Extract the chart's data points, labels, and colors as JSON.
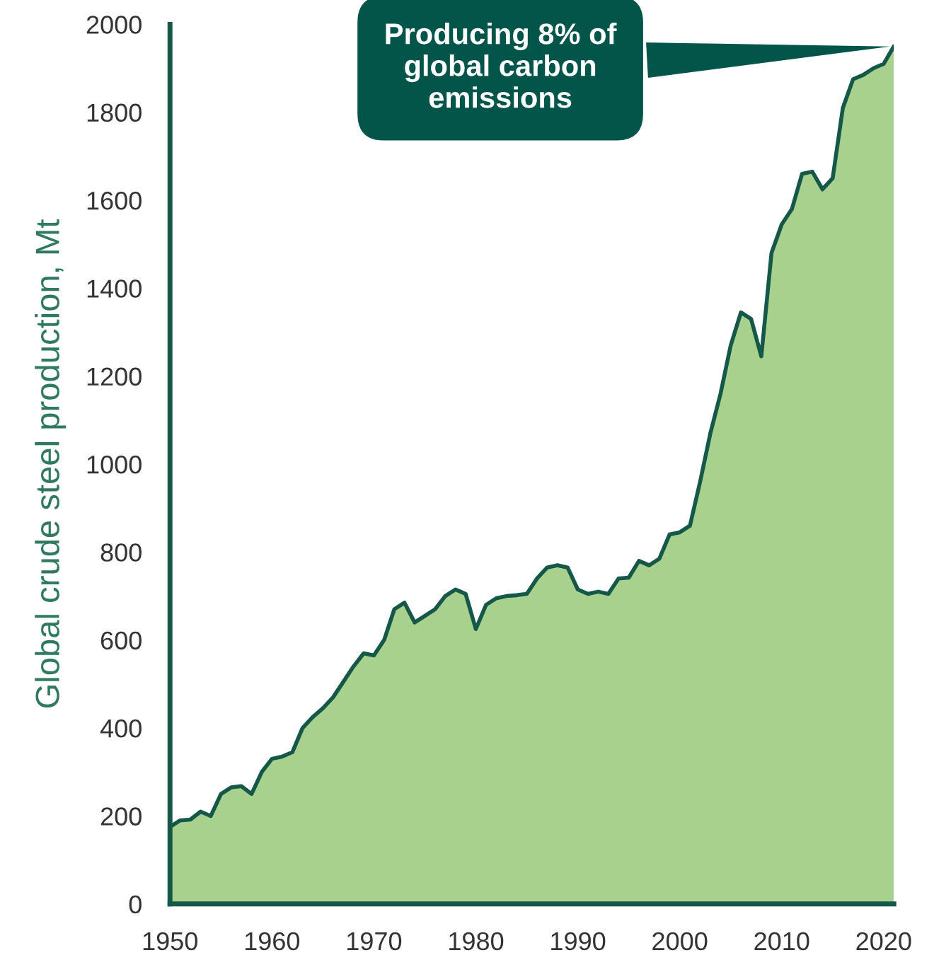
{
  "chart_data": {
    "type": "area",
    "ylabel": "Global crude steel production, Mt",
    "x": [
      1950,
      1951,
      1952,
      1953,
      1954,
      1955,
      1956,
      1957,
      1958,
      1959,
      1960,
      1961,
      1962,
      1963,
      1964,
      1965,
      1966,
      1967,
      1968,
      1969,
      1970,
      1971,
      1972,
      1973,
      1974,
      1975,
      1976,
      1977,
      1978,
      1979,
      1980,
      1981,
      1982,
      1983,
      1984,
      1985,
      1986,
      1987,
      1988,
      1989,
      1990,
      1991,
      1992,
      1993,
      1994,
      1995,
      1996,
      1997,
      1998,
      1999,
      2000,
      2001,
      2002,
      2003,
      2004,
      2005,
      2006,
      2007,
      2008,
      2009,
      2010,
      2011,
      2012,
      2013,
      2014,
      2015,
      2016,
      2017,
      2018,
      2019,
      2020,
      2021
    ],
    "series": [
      {
        "color": "#a9d18e",
        "values": [
          175,
          190,
          192,
          210,
          200,
          250,
          265,
          268,
          250,
          300,
          330,
          335,
          345,
          400,
          425,
          445,
          470,
          505,
          540,
          570,
          565,
          600,
          670,
          685,
          640,
          655,
          670,
          700,
          715,
          705,
          625,
          680,
          695,
          700,
          702,
          705,
          740,
          765,
          770,
          765,
          715,
          705,
          710,
          705,
          740,
          742,
          780,
          770,
          785,
          840,
          845,
          860,
          960,
          1070,
          1160,
          1270,
          1345,
          1330,
          1245,
          1480,
          1545,
          1580,
          1660,
          1665,
          1625,
          1650,
          1810,
          1875,
          1885,
          1900,
          1910,
          1950
        ]
      }
    ],
    "xlim": [
      1950,
      2021
    ],
    "xticks": [
      1950,
      1960,
      1970,
      1980,
      1990,
      2000,
      2010,
      2020
    ],
    "ylim": [
      0,
      2000
    ],
    "yticks": [
      0,
      200,
      400,
      600,
      800,
      1000,
      1200,
      1400,
      1600,
      1800,
      2000
    ],
    "annotations": [
      {
        "text": "Producing 8% of\nglobal carbon\nemissions",
        "x": 2021,
        "y": 1950
      }
    ],
    "grid": false,
    "legend": false
  }
}
